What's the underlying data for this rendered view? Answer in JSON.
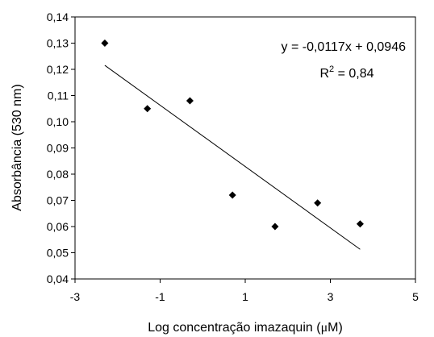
{
  "chart_data": {
    "type": "scatter",
    "xlabel": "Log concentração imazaquin (μM)",
    "ylabel": "Absorbância (530 nm)",
    "xlim": [
      -3,
      5
    ],
    "ylim": [
      0.04,
      0.14
    ],
    "x_ticks": [
      "-3",
      "-1",
      "1",
      "3",
      "5"
    ],
    "y_ticks": [
      "0,04",
      "0,05",
      "0,06",
      "0,07",
      "0,08",
      "0,09",
      "0,10",
      "0,11",
      "0,12",
      "0,13",
      "0,14"
    ],
    "grid": false,
    "legend": "none",
    "marker_color": "#000000",
    "series": [
      {
        "x": [
          -2.3,
          -1.3,
          -0.3,
          0.7,
          1.7,
          2.7,
          3.7
        ],
        "y": [
          0.13,
          0.105,
          0.108,
          0.072,
          0.06,
          0.069,
          0.061
        ]
      }
    ],
    "trendline": {
      "slope": -0.0117,
      "intercept": 0.0946,
      "x_range": [
        -2.3,
        3.7
      ],
      "equation_label": "y = -0,0117x + 0,0946",
      "r2_label_prefix": "R",
      "r2_label_sup": "2",
      "r2_label_value": " = 0,84"
    }
  }
}
